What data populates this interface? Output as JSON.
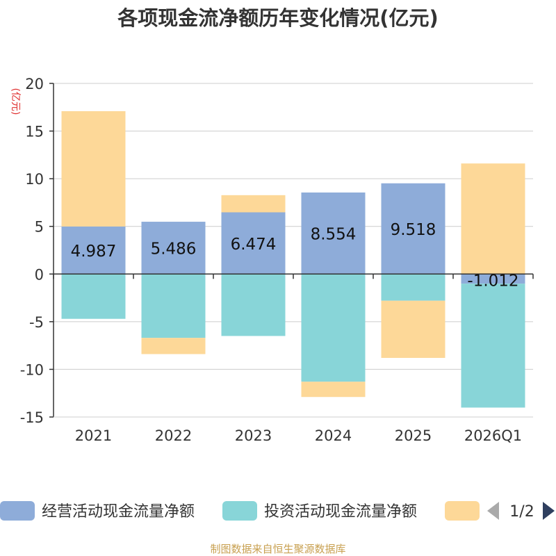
{
  "chart_data": {
    "type": "bar",
    "stacked": true,
    "title": "各项现金流净额历年变化情况(亿元)",
    "ylabel": "(亿元)",
    "xlabel": "",
    "ylim": [
      -15,
      20
    ],
    "yticks": [
      -15,
      -10,
      -5,
      0,
      5,
      10,
      15,
      20
    ],
    "grid": true,
    "categories": [
      "2021",
      "2022",
      "2023",
      "2024",
      "2025",
      "2026Q1"
    ],
    "series": [
      {
        "name": "经营活动现金流量净额",
        "color": "#8eacd9",
        "values": [
          4.987,
          5.486,
          6.474,
          8.554,
          9.518,
          -1.012
        ],
        "labels": [
          "4.987",
          "5.486",
          "6.474",
          "8.554",
          "9.518",
          "-1.012"
        ]
      },
      {
        "name": "投资活动现金流量净额",
        "color": "#88d5d8",
        "values": [
          -4.7,
          -6.7,
          -6.5,
          -11.3,
          -2.8,
          -13.0
        ]
      },
      {
        "name": "",
        "color": "#fdd898",
        "values": [
          12.1,
          -1.7,
          1.8,
          -1.6,
          -6.0,
          11.6
        ]
      }
    ]
  },
  "legend": {
    "page": "1/2",
    "prev_icon": "triangle-left-icon",
    "next_icon": "triangle-right-icon"
  },
  "source": "制图数据来自恒生聚源数据库"
}
